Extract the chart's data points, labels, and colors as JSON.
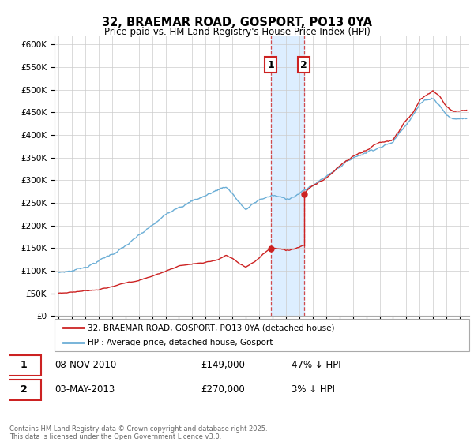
{
  "title": "32, BRAEMAR ROAD, GOSPORT, PO13 0YA",
  "subtitle": "Price paid vs. HM Land Registry's House Price Index (HPI)",
  "legend_line1": "32, BRAEMAR ROAD, GOSPORT, PO13 0YA (detached house)",
  "legend_line2": "HPI: Average price, detached house, Gosport",
  "transaction1_date": "08-NOV-2010",
  "transaction1_price": "£149,000",
  "transaction1_hpi": "47% ↓ HPI",
  "transaction2_date": "03-MAY-2013",
  "transaction2_price": "£270,000",
  "transaction2_hpi": "3% ↓ HPI",
  "footer": "Contains HM Land Registry data © Crown copyright and database right 2025.\nThis data is licensed under the Open Government Licence v3.0.",
  "hpi_color": "#6baed6",
  "price_color": "#cc2222",
  "vline_color": "#cc2222",
  "highlight_color": "#ddeeff",
  "ylim_min": 0,
  "ylim_max": 620000,
  "transaction1_year": 2010.85,
  "transaction2_year": 2013.35,
  "price_s1": 149000,
  "price_s2": 270000,
  "hpi_key_years": [
    1995,
    1996,
    1997,
    1998,
    1999,
    2000,
    2001,
    2002,
    2003,
    2004,
    2005,
    2006,
    2007,
    2007.5,
    2008,
    2008.5,
    2009,
    2009.5,
    2010,
    2010.5,
    2011,
    2011.5,
    2012,
    2012.5,
    2013,
    2013.5,
    2014,
    2015,
    2016,
    2017,
    2018,
    2019,
    2020,
    2021,
    2022,
    2022.5,
    2023,
    2023.5,
    2024,
    2024.5,
    2025
  ],
  "hpi_key_vals": [
    95000,
    100000,
    110000,
    125000,
    140000,
    158000,
    178000,
    198000,
    220000,
    245000,
    258000,
    270000,
    285000,
    292000,
    278000,
    258000,
    242000,
    252000,
    262000,
    268000,
    272000,
    268000,
    262000,
    270000,
    278000,
    285000,
    295000,
    315000,
    340000,
    360000,
    375000,
    390000,
    400000,
    445000,
    490000,
    500000,
    505000,
    490000,
    470000,
    460000,
    462000
  ],
  "red_key_years_pre": [
    1995,
    1996,
    1997,
    1998,
    1999,
    2000,
    2001,
    2002,
    2003,
    2004,
    2005,
    2006,
    2007,
    2007.5,
    2008,
    2008.5,
    2009,
    2009.5,
    2010,
    2010.85
  ],
  "red_key_vals_pre": [
    50000,
    53000,
    57000,
    62000,
    68000,
    75000,
    82000,
    91000,
    102000,
    114000,
    118000,
    122000,
    130000,
    138000,
    130000,
    118000,
    110000,
    118000,
    127000,
    149000
  ],
  "red_key_years_post": [
    2013.35,
    2014,
    2015,
    2016,
    2017,
    2018,
    2019,
    2020,
    2021,
    2022,
    2022.5,
    2023,
    2023.5,
    2024,
    2024.5,
    2025
  ],
  "red_key_vals_post": [
    270000,
    287000,
    305000,
    330000,
    348000,
    362000,
    378000,
    382000,
    428000,
    470000,
    482000,
    490000,
    478000,
    455000,
    445000,
    448000
  ]
}
